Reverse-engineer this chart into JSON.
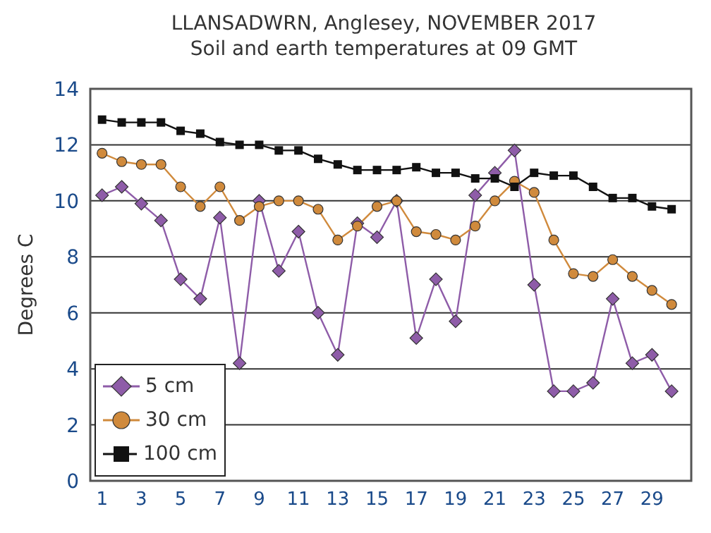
{
  "chart_data": {
    "type": "line",
    "title": "LLANSADWRN, Anglesey, NOVEMBER 2017",
    "subtitle": "Soil and earth temperatures at 09 GMT",
    "ylabel": "Degrees C",
    "x": [
      1,
      2,
      3,
      4,
      5,
      6,
      7,
      8,
      9,
      10,
      11,
      12,
      13,
      14,
      15,
      16,
      17,
      18,
      19,
      20,
      21,
      22,
      23,
      24,
      25,
      26,
      27,
      28,
      29,
      30
    ],
    "series": [
      {
        "name": "5 cm",
        "color": "#8e5ca8",
        "marker": "diamond",
        "values": [
          10.2,
          10.5,
          9.9,
          9.3,
          7.2,
          6.5,
          9.4,
          4.2,
          10.0,
          7.5,
          8.9,
          6.0,
          4.5,
          9.2,
          8.7,
          10.0,
          5.1,
          7.2,
          5.7,
          10.2,
          11.0,
          11.8,
          7.0,
          3.2,
          3.2,
          3.5,
          6.5,
          4.2,
          4.5,
          3.2
        ]
      },
      {
        "name": "30 cm",
        "color": "#d08a3c",
        "marker": "circle",
        "values": [
          11.7,
          11.4,
          11.3,
          11.3,
          10.5,
          9.8,
          10.5,
          9.3,
          9.8,
          10.0,
          10.0,
          9.7,
          8.6,
          9.1,
          9.8,
          10.0,
          8.9,
          8.8,
          8.6,
          9.1,
          10.0,
          10.7,
          10.3,
          8.6,
          7.4,
          7.3,
          7.9,
          7.3,
          6.8,
          6.3
        ]
      },
      {
        "name": "100 cm",
        "color": "#111111",
        "marker": "square",
        "values": [
          12.9,
          12.8,
          12.8,
          12.8,
          12.5,
          12.4,
          12.1,
          12.0,
          12.0,
          11.8,
          11.8,
          11.5,
          11.3,
          11.1,
          11.1,
          11.1,
          11.2,
          11.0,
          11.0,
          10.8,
          10.8,
          10.5,
          11.0,
          10.9,
          10.9,
          10.5,
          10.1,
          10.1,
          9.8,
          9.7
        ]
      }
    ],
    "xlim": [
      0.4,
      31
    ],
    "xticks": [
      1,
      3,
      5,
      7,
      9,
      11,
      13,
      15,
      17,
      19,
      21,
      23,
      25,
      27,
      29
    ],
    "ylim": [
      0,
      14
    ],
    "yticks": [
      0,
      2,
      4,
      6,
      8,
      10,
      12,
      14
    ],
    "grid": "y",
    "legend": "bottom left",
    "line_style": "solid"
  }
}
